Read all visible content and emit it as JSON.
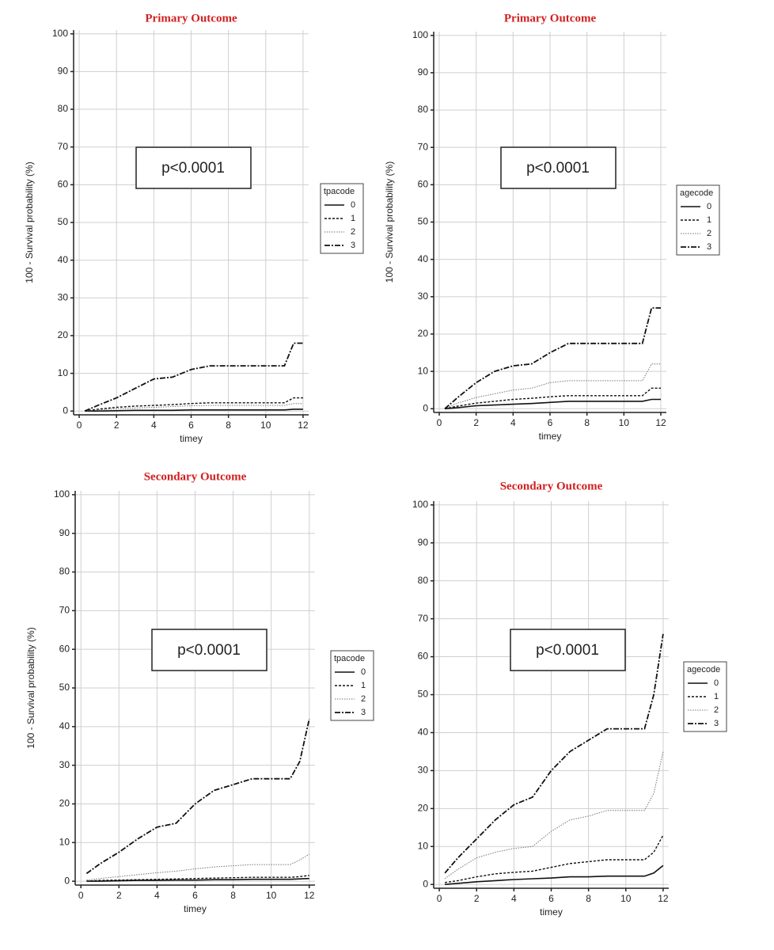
{
  "chart_data": [
    {
      "type": "line",
      "title": "Primary Outcome",
      "xlabel": "timey",
      "ylabel": "100 - Survival probability (%)",
      "annotation": "p<0.0001",
      "legend_title": "tpacode",
      "x": [
        0.3,
        1,
        2,
        3,
        4,
        5,
        6,
        7,
        8,
        9,
        10,
        11,
        11.5,
        12
      ],
      "xlim": [
        -0.3,
        12.3
      ],
      "xticks": [
        0,
        2,
        4,
        6,
        8,
        10,
        12
      ],
      "ylim": [
        -1,
        101
      ],
      "yticks": [
        0,
        10,
        20,
        30,
        40,
        50,
        60,
        70,
        80,
        90,
        100
      ],
      "grid": true,
      "series": [
        {
          "name": "0",
          "color": "#111111",
          "values": [
            0,
            0,
            0.1,
            0.2,
            0.2,
            0.2,
            0.3,
            0.3,
            0.3,
            0.3,
            0.3,
            0.3,
            0.5,
            0.5
          ]
        },
        {
          "name": "1",
          "color": "#111111",
          "values": [
            0,
            0.5,
            1,
            1.3,
            1.5,
            1.7,
            2,
            2.2,
            2.2,
            2.2,
            2.2,
            2.2,
            3.5,
            3.5
          ]
        },
        {
          "name": "2",
          "color": "#777777",
          "values": [
            0,
            0.3,
            0.6,
            0.8,
            1,
            1.2,
            1.4,
            1.5,
            1.5,
            1.5,
            1.5,
            1.5,
            2,
            2
          ]
        },
        {
          "name": "3",
          "color": "#111111",
          "values": [
            0,
            1.5,
            3.5,
            6,
            8.5,
            9,
            11,
            12,
            12,
            12,
            12,
            12,
            18,
            18
          ]
        }
      ]
    },
    {
      "type": "line",
      "title": "Primary Outcome",
      "xlabel": "timey",
      "ylabel": "100 - Survival probability (%)",
      "annotation": "p<0.0001",
      "legend_title": "agecode",
      "x": [
        0.3,
        1,
        2,
        3,
        4,
        5,
        6,
        7,
        8,
        9,
        10,
        11,
        11.5,
        12
      ],
      "xlim": [
        -0.3,
        12.3
      ],
      "xticks": [
        0,
        2,
        4,
        6,
        8,
        10,
        12
      ],
      "ylim": [
        -1,
        101
      ],
      "yticks": [
        0,
        10,
        20,
        30,
        40,
        50,
        60,
        70,
        80,
        90,
        100
      ],
      "grid": true,
      "series": [
        {
          "name": "0",
          "color": "#111111",
          "values": [
            0,
            0.3,
            0.8,
            1,
            1.2,
            1.4,
            1.7,
            2,
            2,
            2,
            2,
            2,
            2.5,
            2.5
          ]
        },
        {
          "name": "1",
          "color": "#111111",
          "values": [
            0,
            0.7,
            1.5,
            2,
            2.5,
            2.8,
            3.2,
            3.5,
            3.5,
            3.5,
            3.5,
            3.5,
            5.5,
            5.5
          ]
        },
        {
          "name": "2",
          "color": "#777777",
          "values": [
            0,
            1.5,
            3,
            4,
            5,
            5.5,
            7,
            7.5,
            7.5,
            7.5,
            7.5,
            7.5,
            12,
            12
          ]
        },
        {
          "name": "3",
          "color": "#111111",
          "values": [
            0,
            3,
            7,
            10,
            11.5,
            12,
            15,
            17.5,
            17.5,
            17.5,
            17.5,
            17.5,
            27,
            27
          ]
        }
      ]
    },
    {
      "type": "line",
      "title": "Secondary Outcome",
      "xlabel": "timey",
      "ylabel": "100 - Survival probability (%)",
      "annotation": "p<0.0001",
      "legend_title": "tpacode",
      "x": [
        0.3,
        1,
        2,
        3,
        4,
        5,
        6,
        7,
        8,
        9,
        10,
        11,
        11.5,
        12
      ],
      "xlim": [
        -0.3,
        12.3
      ],
      "xticks": [
        0,
        2,
        4,
        6,
        8,
        10,
        12
      ],
      "ylim": [
        -1,
        101
      ],
      "yticks": [
        0,
        10,
        20,
        30,
        40,
        50,
        60,
        70,
        80,
        90,
        100
      ],
      "grid": true,
      "series": [
        {
          "name": "0",
          "color": "#111111",
          "values": [
            0,
            0,
            0.1,
            0.2,
            0.2,
            0.3,
            0.3,
            0.4,
            0.4,
            0.5,
            0.5,
            0.5,
            0.6,
            0.7
          ]
        },
        {
          "name": "1",
          "color": "#111111",
          "values": [
            0,
            0.2,
            0.3,
            0.4,
            0.5,
            0.6,
            0.7,
            0.8,
            0.9,
            1,
            1,
            1,
            1.2,
            1.5
          ]
        },
        {
          "name": "2",
          "color": "#777777",
          "values": [
            0.3,
            0.7,
            1.2,
            1.7,
            2.2,
            2.6,
            3.2,
            3.7,
            4,
            4.3,
            4.3,
            4.3,
            5.5,
            7
          ]
        },
        {
          "name": "3",
          "color": "#111111",
          "values": [
            2,
            4.5,
            7.5,
            11,
            14,
            15,
            20,
            23.5,
            25,
            26.5,
            26.5,
            26.5,
            31,
            42
          ]
        }
      ]
    },
    {
      "type": "line",
      "title": "Secondary Outcome",
      "xlabel": "timey",
      "annotation": "p<0.0001",
      "legend_title": "agecode",
      "x": [
        0.3,
        1,
        2,
        3,
        4,
        5,
        6,
        7,
        8,
        9,
        10,
        11,
        11.5,
        12
      ],
      "xlim": [
        -0.3,
        12.3
      ],
      "xticks": [
        0,
        2,
        4,
        6,
        8,
        10,
        12
      ],
      "ylim": [
        -1,
        101
      ],
      "yticks": [
        0,
        10,
        20,
        30,
        40,
        50,
        60,
        70,
        80,
        90,
        100
      ],
      "grid": true,
      "series": [
        {
          "name": "0",
          "color": "#111111",
          "values": [
            0,
            0.3,
            0.7,
            1,
            1.3,
            1.5,
            1.7,
            2,
            2,
            2.2,
            2.2,
            2.2,
            3,
            5
          ]
        },
        {
          "name": "1",
          "color": "#111111",
          "values": [
            0.5,
            1,
            2,
            2.8,
            3.2,
            3.5,
            4.5,
            5.5,
            6,
            6.5,
            6.5,
            6.5,
            8.5,
            13
          ]
        },
        {
          "name": "2",
          "color": "#777777",
          "values": [
            1.5,
            4,
            7,
            8.5,
            9.5,
            10,
            14,
            17,
            18,
            19.5,
            19.5,
            19.5,
            24,
            35
          ]
        },
        {
          "name": "3",
          "color": "#111111",
          "values": [
            3,
            7,
            12,
            17,
            21,
            23,
            30,
            35,
            38,
            41,
            41,
            41,
            50,
            66
          ]
        }
      ]
    }
  ]
}
